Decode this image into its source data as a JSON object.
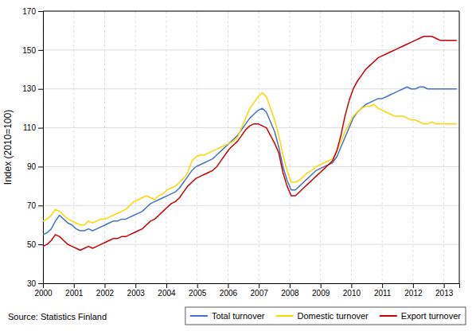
{
  "chart_data": {
    "type": "line",
    "ylabel": "Index (2010=100)",
    "source": "Source: Statistics Finland",
    "xlim": [
      2000.0,
      2013.5
    ],
    "xticks": [
      2000,
      2001,
      2002,
      2003,
      2004,
      2005,
      2006,
      2007,
      2008,
      2009,
      2010,
      2011,
      2012,
      2013
    ],
    "ylim": [
      30,
      170
    ],
    "yticks": [
      30,
      50,
      70,
      90,
      110,
      130,
      150,
      170
    ],
    "grid": true,
    "legend": "bottom-right",
    "x": [
      2000,
      2000.13417,
      2000.26834,
      2000.40251,
      2000.53668,
      2000.67085,
      2000.80502,
      2000.93919,
      2001.07336,
      2001.20753,
      2001.3417,
      2001.47587,
      2001.61004,
      2001.74421,
      2001.87838,
      2002.01255,
      2002.14672,
      2002.28089,
      2002.41506,
      2002.54923,
      2002.6834,
      2002.81757,
      2002.95174,
      2003.08591,
      2003.22008,
      2003.35425,
      2003.48842,
      2003.62259,
      2003.75676,
      2003.89093,
      2004.0251,
      2004.15927,
      2004.29344,
      2004.42761,
      2004.56178,
      2004.69595,
      2004.83012,
      2004.96429,
      2005.09846,
      2005.23263,
      2005.3668,
      2005.50097,
      2005.63514,
      2005.76931,
      2005.90348,
      2006.03765,
      2006.17182,
      2006.30599,
      2006.44016,
      2006.57433,
      2006.7085,
      2006.84267,
      2006.97684,
      2007.11101,
      2007.24518,
      2007.37935,
      2007.51352,
      2007.64769,
      2007.78186,
      2007.91603,
      2008.0502,
      2008.18437,
      2008.31854,
      2008.45271,
      2008.58688,
      2008.72105,
      2008.85522,
      2008.98939,
      2009.12356,
      2009.25773,
      2009.3919,
      2009.52607,
      2009.66024,
      2009.79441,
      2009.92858,
      2010.06275,
      2010.19692,
      2010.33109,
      2010.46526,
      2010.59943,
      2010.7336,
      2010.86777,
      2011.00194,
      2011.13611,
      2011.27028,
      2011.40445,
      2011.53862,
      2011.67279,
      2011.80696,
      2011.94113,
      2012.0753,
      2012.20947,
      2012.34364,
      2012.47781,
      2012.61198,
      2012.74615,
      2012.88032,
      2013.01449,
      2013.14866,
      2013.28283,
      2013.417
    ],
    "series": [
      {
        "name": "Total turnover",
        "color": "#4472C4",
        "values": [
          55,
          56,
          58,
          62,
          65,
          63,
          61,
          60,
          58,
          57,
          57,
          58,
          57,
          58,
          59,
          60,
          61,
          62,
          62,
          63,
          63,
          64,
          65,
          66,
          67,
          69,
          71,
          72,
          73,
          74,
          75,
          76,
          77,
          79,
          82,
          85,
          88,
          90,
          91,
          92,
          93,
          94,
          96,
          98,
          100,
          102,
          104,
          106,
          109,
          112,
          115,
          117,
          119,
          120,
          118,
          113,
          108,
          100,
          90,
          83,
          78,
          78,
          80,
          82,
          84,
          86,
          88,
          89,
          90,
          91,
          92,
          95,
          100,
          105,
          110,
          115,
          118,
          120,
          122,
          123,
          124,
          125,
          125,
          126,
          127,
          128,
          129,
          130,
          131,
          130,
          130,
          131,
          131,
          130,
          130,
          130,
          130,
          130,
          130,
          130,
          130
        ]
      },
      {
        "name": "Domestic turnover",
        "color": "#FFD700",
        "values": [
          62,
          63,
          65,
          68,
          67,
          65,
          63,
          62,
          61,
          60,
          60,
          62,
          61,
          62,
          63,
          63,
          64,
          65,
          66,
          67,
          68,
          70,
          72,
          73,
          74,
          75,
          74,
          73,
          75,
          76,
          78,
          79,
          80,
          82,
          84,
          87,
          93,
          95,
          96,
          96,
          97,
          98,
          99,
          100,
          101,
          102,
          103,
          105,
          110,
          115,
          120,
          123,
          126,
          128,
          126,
          120,
          114,
          106,
          96,
          88,
          82,
          82,
          83,
          85,
          87,
          88,
          90,
          91,
          92,
          93,
          94,
          98,
          103,
          108,
          112,
          116,
          118,
          120,
          121,
          121,
          122,
          120,
          119,
          118,
          117,
          116,
          116,
          116,
          115,
          114,
          114,
          113,
          112,
          112,
          113,
          112,
          112,
          112,
          112,
          112,
          112
        ]
      },
      {
        "name": "Export turnover",
        "color": "#CC0000",
        "values": [
          49,
          50,
          52,
          55,
          54,
          52,
          50,
          49,
          48,
          47,
          48,
          49,
          48,
          49,
          50,
          51,
          52,
          53,
          53,
          54,
          54,
          55,
          56,
          57,
          58,
          60,
          62,
          63,
          65,
          67,
          69,
          71,
          72,
          74,
          77,
          80,
          82,
          84,
          85,
          86,
          87,
          88,
          90,
          93,
          96,
          99,
          101,
          103,
          106,
          109,
          111,
          112,
          112,
          111,
          110,
          106,
          102,
          97,
          87,
          80,
          75,
          75,
          77,
          79,
          81,
          83,
          85,
          87,
          89,
          91,
          93,
          98,
          106,
          116,
          124,
          130,
          134,
          137,
          140,
          142,
          144,
          146,
          147,
          148,
          149,
          150,
          151,
          152,
          153,
          154,
          155,
          156,
          157,
          157,
          157,
          156,
          155,
          155,
          155,
          155,
          155
        ]
      }
    ]
  }
}
